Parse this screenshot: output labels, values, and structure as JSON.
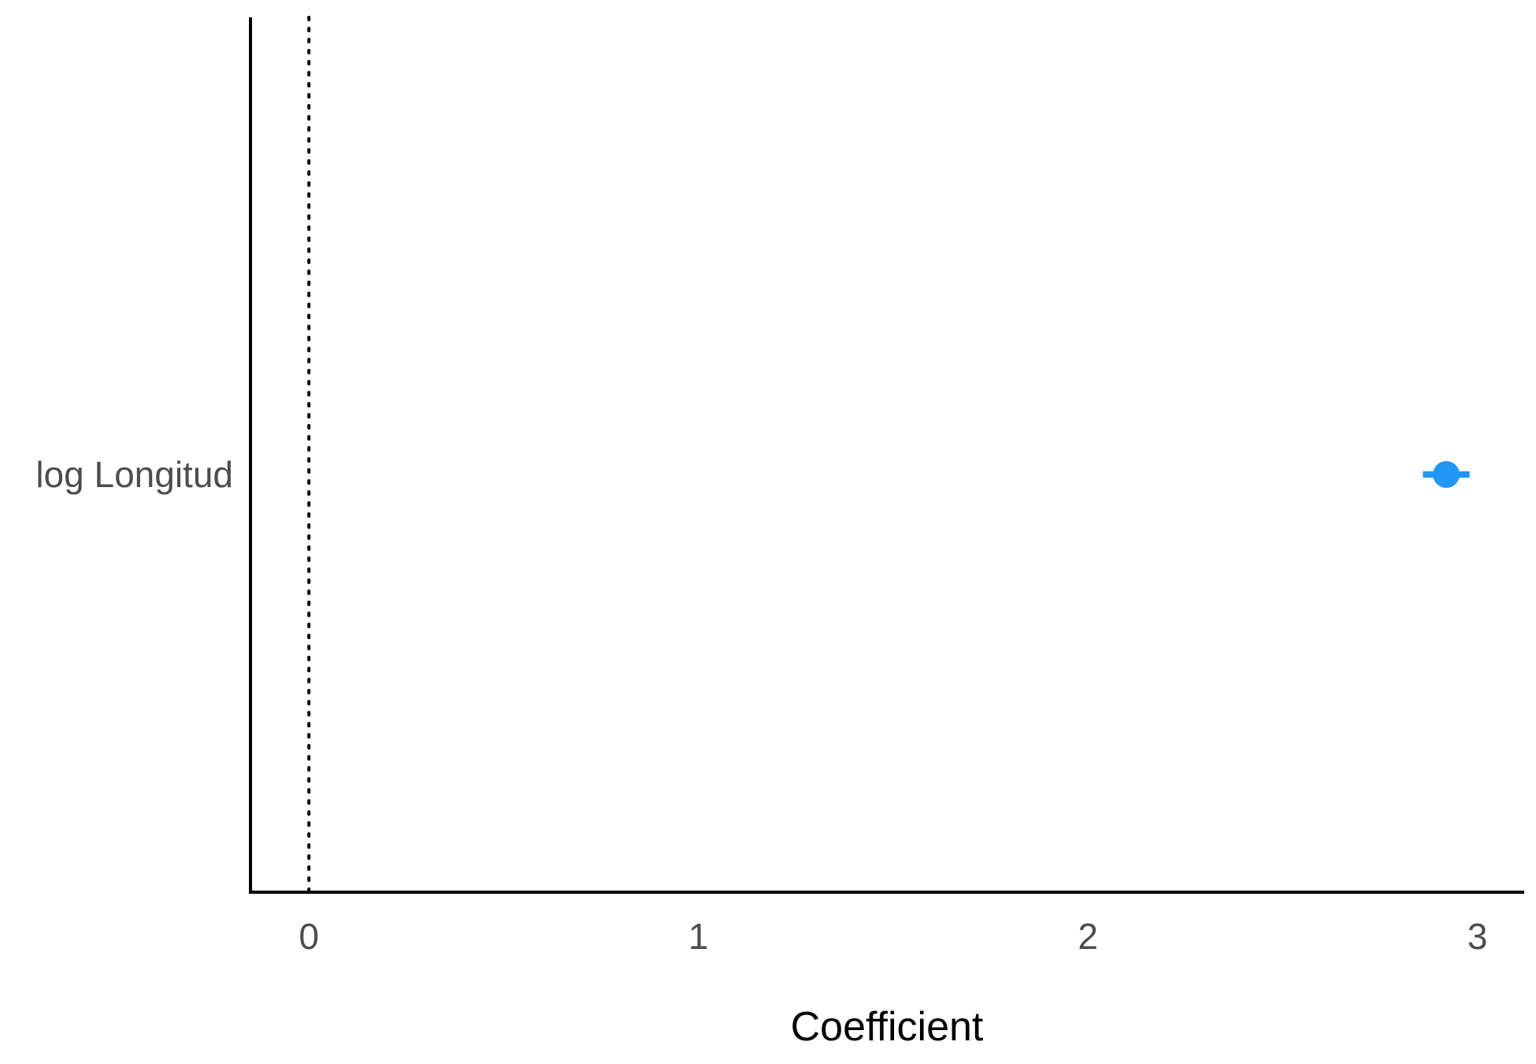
{
  "chart_data": {
    "type": "scatter",
    "subtype": "coefficient-plot",
    "title": "",
    "xlabel": "Coefficient",
    "ylabel": "",
    "xlim": [
      -0.15,
      3.12
    ],
    "x_ticks": [
      0,
      1,
      2,
      3
    ],
    "x_tick_labels": [
      "0",
      "1",
      "2",
      "3"
    ],
    "reference_line": {
      "x": 0,
      "style": "dotted"
    },
    "grid": false,
    "legend": "none",
    "categories": [
      "log Longitud"
    ],
    "points": [
      {
        "term": "log Longitud",
        "estimate": 2.92,
        "ci_low": 2.86,
        "ci_high": 2.98
      }
    ],
    "colors": {
      "point": "#2196F3",
      "axis": "#000000",
      "reference_line": "#000000",
      "tick_label": "#4d4d4d",
      "axis_title": "#000000"
    }
  }
}
